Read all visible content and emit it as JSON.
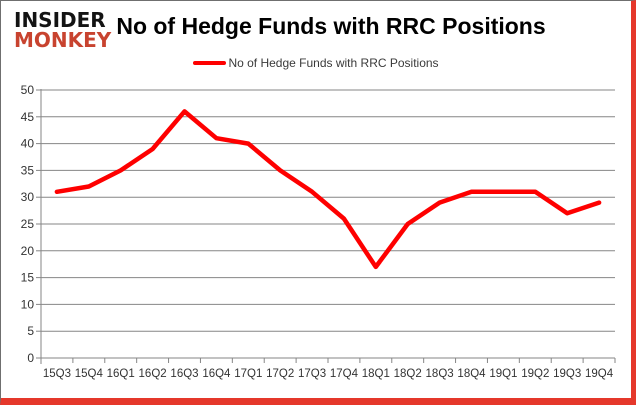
{
  "logo": {
    "line1": "INSIDER",
    "line2": "MONKEY"
  },
  "title": "No of Hedge Funds with RRC Positions",
  "legend": {
    "label": "No of Hedge Funds with RRC Positions",
    "swatch_color": "#fe0000"
  },
  "chart_data": {
    "type": "line",
    "title": "No of Hedge Funds with RRC Positions",
    "categories": [
      "15Q3",
      "15Q4",
      "16Q1",
      "16Q2",
      "16Q3",
      "16Q4",
      "17Q1",
      "17Q2",
      "17Q3",
      "17Q4",
      "18Q1",
      "18Q2",
      "18Q3",
      "18Q4",
      "19Q1",
      "19Q2",
      "19Q3",
      "19Q4"
    ],
    "series": [
      {
        "name": "No of Hedge Funds with RRC Positions",
        "color": "#fe0000",
        "values": [
          31,
          32,
          35,
          39,
          46,
          41,
          40,
          35,
          31,
          26,
          17,
          25,
          29,
          31,
          31,
          31,
          27,
          29
        ]
      }
    ],
    "xlabel": "",
    "ylabel": "",
    "ylim": [
      0,
      50
    ],
    "ytick_step": 5,
    "yticks": [
      0,
      5,
      10,
      15,
      20,
      25,
      30,
      35,
      40,
      45,
      50
    ],
    "grid": true,
    "gridline_color": "#868686",
    "axis_text_color": "#333333",
    "legend_position": "top"
  }
}
